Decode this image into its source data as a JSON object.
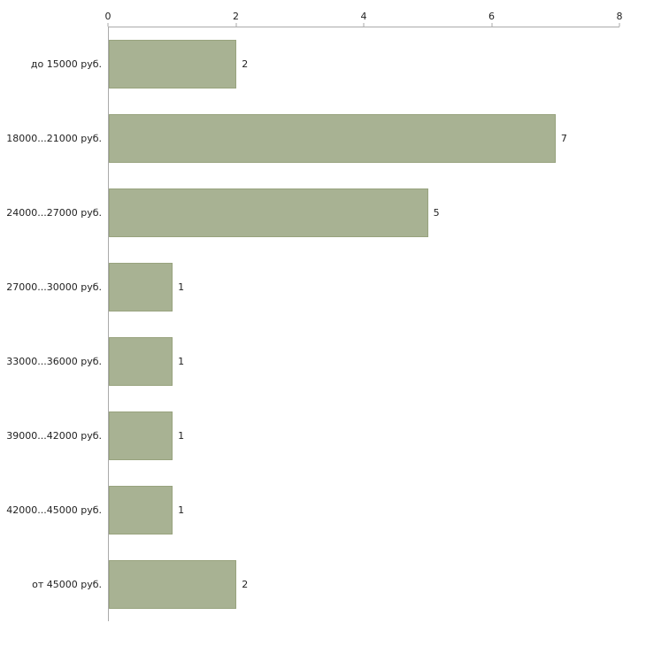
{
  "chart_data": {
    "type": "bar",
    "orientation": "horizontal",
    "title": "",
    "xlabel": "",
    "ylabel": "",
    "categories": [
      "до 15000 руб.",
      "18000...21000 руб.",
      "24000...27000 руб.",
      "27000...30000 руб.",
      "33000...36000 руб.",
      "39000...42000 руб.",
      "42000...45000 руб.",
      "от 45000 руб."
    ],
    "values": [
      2,
      7,
      5,
      1,
      1,
      1,
      1,
      2
    ],
    "value_labels_shown": true,
    "xlim": [
      0,
      8
    ],
    "x_ticks": [
      "0",
      "2",
      "4",
      "6",
      "8"
    ],
    "grid": "off",
    "legend": "none",
    "colors": {
      "bar_fill": "#a8b293",
      "bar_border": "#98a37e",
      "axis_line": "#aaaaaa",
      "text": "#222222",
      "background": "#ffffff"
    }
  }
}
